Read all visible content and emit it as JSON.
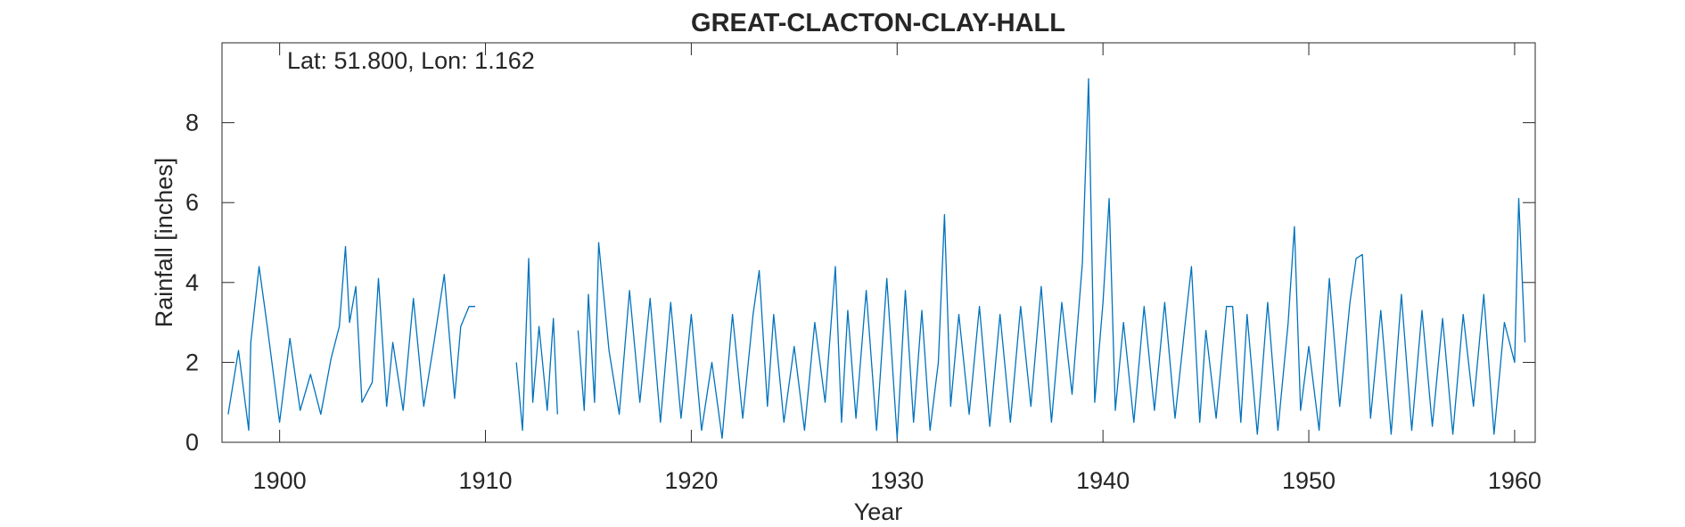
{
  "chart_data": {
    "type": "line",
    "title": "GREAT-CLACTON-CLAY-HALL",
    "annotation": "Lat: 51.800, Lon: 1.162",
    "xlabel": "Year",
    "ylabel": "Rainfall [inches]",
    "xlim": [
      1897.2,
      1961.0
    ],
    "ylim": [
      0,
      10
    ],
    "xticks": [
      1900,
      1910,
      1920,
      1930,
      1940,
      1950,
      1960
    ],
    "yticks": [
      0,
      2,
      4,
      6,
      8
    ],
    "grid": false,
    "line_color": "#0072BD",
    "series": [
      {
        "segments": [
          {
            "x": [
              1897.5,
              1898.0,
              1898.5,
              1898.6,
              1899.0,
              1899.4,
              1900.0,
              1900.5,
              1901.0,
              1901.5,
              1902.0,
              1902.5,
              1902.9,
              1903.2,
              1903.4,
              1903.7,
              1904.0,
              1904.5,
              1904.8,
              1905.2,
              1905.5,
              1906.0,
              1906.5,
              1907.0,
              1907.5,
              1908.0,
              1908.5,
              1908.8,
              1909.2,
              1909.5
            ],
            "y": [
              0.7,
              2.3,
              0.3,
              2.5,
              4.4,
              2.9,
              0.5,
              2.6,
              0.8,
              1.7,
              0.7,
              2.1,
              2.9,
              4.9,
              3.0,
              3.9,
              1.0,
              1.5,
              4.1,
              0.9,
              2.5,
              0.8,
              3.6,
              0.9,
              2.5,
              4.2,
              1.1,
              2.9,
              3.4,
              3.4
            ]
          },
          {
            "x": [
              1911.5,
              1911.8,
              1912.1,
              1912.3,
              1912.6,
              1913.0,
              1913.3,
              1913.5
            ],
            "y": [
              2.0,
              0.3,
              4.6,
              1.0,
              2.9,
              0.8,
              3.1,
              0.7
            ]
          },
          {
            "x": [
              1914.5,
              1914.8,
              1915.0,
              1915.3,
              1915.5,
              1916.0,
              1916.5,
              1917.0,
              1917.5,
              1918.0,
              1918.5,
              1919.0,
              1919.5,
              1920.0,
              1920.5,
              1921.0,
              1921.5,
              1922.0,
              1922.5,
              1923.0,
              1923.3,
              1923.7,
              1924.0,
              1924.5,
              1925.0,
              1925.5,
              1926.0,
              1926.5,
              1927.0,
              1927.3,
              1927.6,
              1928.0,
              1928.5,
              1929.0,
              1929.5,
              1930.0,
              1930.4,
              1930.8,
              1931.2,
              1931.6,
              1932.0,
              1932.3,
              1932.6,
              1933.0,
              1933.5,
              1934.0,
              1934.5,
              1935.0,
              1935.5,
              1936.0,
              1936.5,
              1937.0,
              1937.5,
              1938.0,
              1938.5,
              1939.0,
              1939.3,
              1939.6,
              1940.0,
              1940.3,
              1940.6,
              1941.0,
              1941.5,
              1942.0,
              1942.5,
              1943.0,
              1943.5,
              1944.0,
              1944.3,
              1944.7,
              1945.0,
              1945.5,
              1946.0,
              1946.3,
              1946.7,
              1947.0,
              1947.5,
              1948.0,
              1948.5,
              1949.0,
              1949.3,
              1949.6,
              1950.0,
              1950.5,
              1951.0,
              1951.5,
              1952.0,
              1952.3,
              1952.6,
              1953.0,
              1953.5,
              1954.0,
              1954.5,
              1955.0,
              1955.5,
              1956.0,
              1956.5,
              1957.0,
              1957.5,
              1958.0,
              1958.5,
              1959.0,
              1959.5,
              1960.0,
              1960.2,
              1960.5
            ],
            "y": [
              2.8,
              0.8,
              3.7,
              1.0,
              5.0,
              2.3,
              0.7,
              3.8,
              1.0,
              3.6,
              0.5,
              3.5,
              0.6,
              3.2,
              0.3,
              2.0,
              0.1,
              3.2,
              0.6,
              3.2,
              4.3,
              0.9,
              3.2,
              0.5,
              2.4,
              0.3,
              3.0,
              1.0,
              4.4,
              0.5,
              3.3,
              0.6,
              3.8,
              0.3,
              4.1,
              0.1,
              3.8,
              0.5,
              3.3,
              0.3,
              2.0,
              5.7,
              0.9,
              3.2,
              0.7,
              3.4,
              0.4,
              3.2,
              0.5,
              3.4,
              0.9,
              3.9,
              0.5,
              3.5,
              1.2,
              4.5,
              9.1,
              1.0,
              3.5,
              6.1,
              0.8,
              3.0,
              0.5,
              3.4,
              0.8,
              3.5,
              0.6,
              3.0,
              4.4,
              0.5,
              2.8,
              0.6,
              3.4,
              3.4,
              0.5,
              3.2,
              0.2,
              3.5,
              0.3,
              3.0,
              5.4,
              0.8,
              2.4,
              0.3,
              4.1,
              0.9,
              3.5,
              4.6,
              4.7,
              0.6,
              3.3,
              0.2,
              3.7,
              0.3,
              3.3,
              0.4,
              3.1,
              0.2,
              3.2,
              0.9,
              3.7,
              0.2,
              3.0,
              2.0,
              6.1,
              2.5
            ]
          }
        ]
      }
    ]
  }
}
